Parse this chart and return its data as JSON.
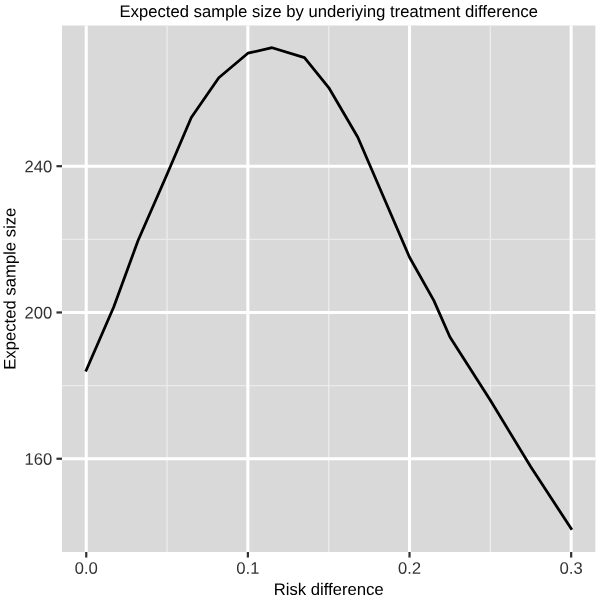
{
  "chart_data": {
    "type": "line",
    "title": "Expected sample size by underiying treatment difference",
    "xlabel": "Risk difference",
    "ylabel": "Expected sample size",
    "x": [
      0,
      0.017,
      0.032,
      0.05,
      0.065,
      0.082,
      0.1,
      0.115,
      0.135,
      0.15,
      0.168,
      0.184,
      0.2,
      0.215,
      0.225,
      0.25,
      0.275,
      0.3
    ],
    "series": [
      {
        "color": "#000000",
        "values": [
          184.2,
          201.5,
          219.6,
          237.8,
          253.3,
          264.2,
          270.9,
          272.4,
          269.7,
          261.5,
          247.9,
          231.5,
          215.1,
          203.3,
          193.3,
          176,
          157.8,
          140.9
        ]
      }
    ],
    "xlim": [
      -0.015,
      0.315
    ],
    "ylim": [
      134.5,
      278.5
    ],
    "xticks": [
      {
        "value": 0,
        "label": "0.0"
      },
      0.1,
      0.2,
      0.3
    ],
    "yticks": [
      160,
      200,
      240
    ],
    "grid": true,
    "legend": false
  }
}
